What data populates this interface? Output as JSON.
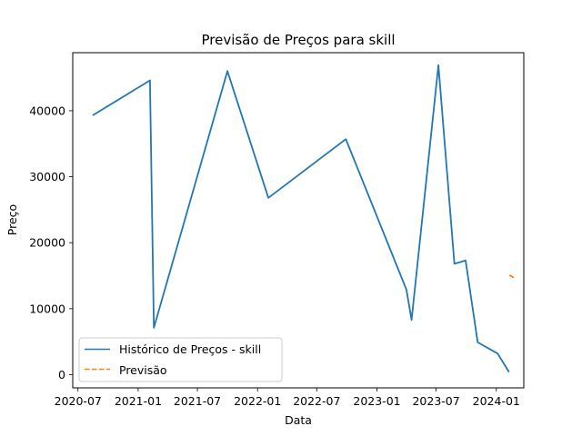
{
  "chart_data": {
    "type": "line",
    "title": "Previsão de Preços para skill",
    "xlabel": "Data",
    "ylabel": "Preço",
    "x_ticks": [
      "2020-07",
      "2021-01",
      "2021-07",
      "2022-01",
      "2022-07",
      "2023-01",
      "2023-07",
      "2024-01"
    ],
    "y_ticks": [
      "0",
      "10000",
      "20000",
      "30000",
      "40000"
    ],
    "xlim": [
      "2020-06-15",
      "2024-03-25"
    ],
    "ylim": [
      -2000,
      48800
    ],
    "grid": false,
    "legend_position": "lower-left",
    "series": [
      {
        "name": "Histórico de Preços - skill",
        "color": "#1f77b4",
        "style": "solid",
        "points": [
          {
            "x": "2020-08-15",
            "y": 39300
          },
          {
            "x": "2021-02-06",
            "y": 44600
          },
          {
            "x": "2021-02-18",
            "y": 7100
          },
          {
            "x": "2021-10-01",
            "y": 46000
          },
          {
            "x": "2022-02-03",
            "y": 26800
          },
          {
            "x": "2022-09-28",
            "y": 35700
          },
          {
            "x": "2023-04-01",
            "y": 12900
          },
          {
            "x": "2023-04-17",
            "y": 8300
          },
          {
            "x": "2023-07-08",
            "y": 46900
          },
          {
            "x": "2023-08-26",
            "y": 16800
          },
          {
            "x": "2023-09-29",
            "y": 17300
          },
          {
            "x": "2023-11-05",
            "y": 4900
          },
          {
            "x": "2024-01-05",
            "y": 3200
          },
          {
            "x": "2024-02-09",
            "y": 400
          }
        ]
      },
      {
        "name": "Previsão",
        "color": "#ff7f0e",
        "style": "dashed",
        "points": [
          {
            "x": "2024-02-10",
            "y": 15100
          },
          {
            "x": "2024-02-27",
            "y": 14600
          }
        ]
      }
    ]
  }
}
